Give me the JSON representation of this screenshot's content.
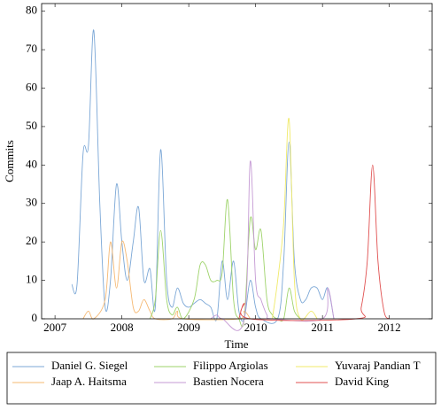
{
  "chart_data": {
    "type": "line",
    "xlabel": "Time",
    "ylabel": "Commits",
    "xlim": [
      2006.8,
      2012.64
    ],
    "ylim": [
      0,
      82
    ],
    "xticks": [
      2007,
      2008,
      2009,
      2010,
      2011,
      2012
    ],
    "yticks": [
      0,
      10,
      20,
      30,
      40,
      50,
      60,
      70,
      80
    ],
    "series": [
      {
        "name": "Daniel G. Siegel",
        "color": "#7ba7d6",
        "x": [
          2007.25,
          2007.33,
          2007.42,
          2007.5,
          2007.58,
          2007.67,
          2007.75,
          2007.83,
          2007.92,
          2008.0,
          2008.08,
          2008.17,
          2008.25,
          2008.33,
          2008.42,
          2008.5,
          2008.58,
          2008.67,
          2008.75,
          2008.83,
          2008.92,
          2009.0,
          2009.08,
          2009.17,
          2009.25,
          2009.33,
          2009.42,
          2009.5,
          2009.58,
          2009.67,
          2009.75,
          2009.83,
          2009.92,
          2010.0,
          2010.08,
          2010.33,
          2010.42,
          2010.5,
          2010.58,
          2010.67,
          2010.75,
          2010.83,
          2010.92,
          2011.0,
          2011.08,
          2011.17
        ],
        "values": [
          9,
          9,
          43,
          45,
          75,
          30,
          3,
          10,
          35,
          20,
          10,
          20,
          29,
          10,
          13,
          3,
          44,
          10,
          3,
          8,
          4,
          3,
          4,
          5,
          4,
          3,
          0,
          15,
          5,
          15,
          2,
          0,
          10,
          3,
          0,
          0,
          15,
          46,
          15,
          5,
          5,
          8,
          8,
          5,
          8,
          0
        ]
      },
      {
        "name": "Jaap A. Haitsma",
        "color": "#f5b872",
        "x": [
          2007.42,
          2007.5,
          2007.58,
          2007.75,
          2007.83,
          2007.92,
          2008.0,
          2008.08,
          2008.17,
          2008.25,
          2008.33,
          2008.42,
          2008.5,
          2008.75,
          2008.83,
          2008.92,
          2009.75,
          2009.83,
          2009.92
        ],
        "values": [
          0,
          2,
          0,
          5,
          20,
          8,
          20,
          15,
          3,
          2,
          5,
          2,
          0,
          0,
          2,
          0,
          0,
          2,
          0
        ]
      },
      {
        "name": "Filippo Argiolas",
        "color": "#9ed36a",
        "x": [
          2008.42,
          2008.5,
          2008.58,
          2008.67,
          2008.75,
          2008.83,
          2008.92,
          2009.08,
          2009.17,
          2009.25,
          2009.33,
          2009.42,
          2009.5,
          2009.58,
          2009.67,
          2009.75,
          2009.83,
          2009.92,
          2010.0,
          2010.08,
          2010.17,
          2010.25,
          2010.33,
          2010.42,
          2010.5,
          2010.58,
          2010.67
        ],
        "values": [
          0,
          5,
          23,
          5,
          1,
          3,
          0,
          5,
          14,
          14,
          10,
          10,
          12,
          31,
          5,
          0,
          0,
          26,
          18,
          23,
          5,
          1,
          0,
          0,
          8,
          2,
          0
        ]
      },
      {
        "name": "Bastien Nocera",
        "color": "#c59ad4",
        "x": [
          2009.33,
          2009.42,
          2009.5,
          2009.83,
          2009.92,
          2010.0,
          2010.08,
          2010.17,
          2010.25,
          2011.0,
          2011.08,
          2011.17
        ],
        "values": [
          0,
          1,
          0,
          0,
          41,
          10,
          5,
          1,
          0,
          0,
          8,
          0
        ]
      },
      {
        "name": "Yuvaraj Pandian T",
        "color": "#f0ea6a",
        "x": [
          2010.25,
          2010.33,
          2010.42,
          2010.5,
          2010.58,
          2010.67,
          2010.83,
          2010.92
        ],
        "values": [
          0,
          10,
          25,
          52,
          10,
          0,
          2,
          0
        ]
      },
      {
        "name": "David King",
        "color": "#e05050",
        "x": [
          2009.75,
          2009.83,
          2009.92,
          2011.5,
          2011.58,
          2011.67,
          2011.75,
          2011.83,
          2011.92,
          2012.0
        ],
        "values": [
          0,
          4,
          0,
          0,
          3,
          15,
          40,
          15,
          2,
          0
        ]
      }
    ]
  }
}
